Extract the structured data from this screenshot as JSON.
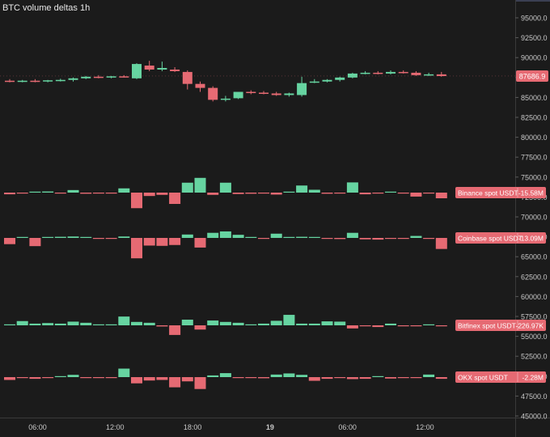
{
  "title": "BTC volume deltas  1h",
  "colors": {
    "up": "#66d4a1",
    "down": "#e66a73",
    "background": "#1b1b1b",
    "axis_text": "#c8c8c8"
  },
  "chart_data": {
    "type": "candlestick+bar",
    "title": "BTC volume deltas  1h",
    "y_axis": {
      "side": "right",
      "ticks": [
        "95000.0",
        "92500.0",
        "90000.0",
        "87500.0",
        "85000.0",
        "82500.0",
        "80000.0",
        "77500.0",
        "75000.0",
        "72500.0",
        "70000.0",
        "67500.0",
        "65000.0",
        "62500.0",
        "60000.0",
        "57500.0",
        "55000.0",
        "52500.0",
        "50000.0",
        "47500.0",
        "45000.0"
      ],
      "last_price_label": "87686.9"
    },
    "x_axis": {
      "tick_labels": [
        "06:00",
        "12:00",
        "18:00",
        "19",
        "06:00",
        "12:00"
      ]
    },
    "price_candles": [
      {
        "o": 87100,
        "h": 87300,
        "l": 86900,
        "c": 87000
      },
      {
        "o": 87000,
        "h": 87200,
        "l": 86900,
        "c": 87100
      },
      {
        "o": 87100,
        "h": 87300,
        "l": 86900,
        "c": 87000
      },
      {
        "o": 87000,
        "h": 87200,
        "l": 86900,
        "c": 87150
      },
      {
        "o": 87150,
        "h": 87350,
        "l": 87000,
        "c": 87200
      },
      {
        "o": 87200,
        "h": 87500,
        "l": 87000,
        "c": 87400
      },
      {
        "o": 87400,
        "h": 87700,
        "l": 87300,
        "c": 87600
      },
      {
        "o": 87600,
        "h": 87800,
        "l": 87400,
        "c": 87500
      },
      {
        "o": 87500,
        "h": 87700,
        "l": 87400,
        "c": 87650
      },
      {
        "o": 87650,
        "h": 87800,
        "l": 87500,
        "c": 87600
      },
      {
        "o": 87400,
        "h": 89300,
        "l": 87300,
        "c": 89200
      },
      {
        "o": 89000,
        "h": 89600,
        "l": 88300,
        "c": 88500
      },
      {
        "o": 88500,
        "h": 89500,
        "l": 88300,
        "c": 88700
      },
      {
        "o": 88500,
        "h": 88800,
        "l": 88200,
        "c": 88300
      },
      {
        "o": 88200,
        "h": 88400,
        "l": 86000,
        "c": 86700
      },
      {
        "o": 86700,
        "h": 87000,
        "l": 85700,
        "c": 86200
      },
      {
        "o": 86200,
        "h": 86400,
        "l": 84500,
        "c": 84700
      },
      {
        "o": 84700,
        "h": 85200,
        "l": 84500,
        "c": 84850
      },
      {
        "o": 84900,
        "h": 85500,
        "l": 84800,
        "c": 85700
      },
      {
        "o": 85700,
        "h": 85900,
        "l": 85400,
        "c": 85600
      },
      {
        "o": 85600,
        "h": 85800,
        "l": 85400,
        "c": 85500
      },
      {
        "o": 85500,
        "h": 85700,
        "l": 85200,
        "c": 85300
      },
      {
        "o": 85300,
        "h": 85600,
        "l": 85100,
        "c": 85500
      },
      {
        "o": 85300,
        "h": 87600,
        "l": 85100,
        "c": 86800
      },
      {
        "o": 86900,
        "h": 87300,
        "l": 86800,
        "c": 87000
      },
      {
        "o": 87000,
        "h": 87300,
        "l": 86900,
        "c": 87200
      },
      {
        "o": 87200,
        "h": 87600,
        "l": 87000,
        "c": 87500
      },
      {
        "o": 87500,
        "h": 88100,
        "l": 87400,
        "c": 88000
      },
      {
        "o": 88000,
        "h": 88300,
        "l": 87900,
        "c": 88100
      },
      {
        "o": 88100,
        "h": 88300,
        "l": 87900,
        "c": 88000
      },
      {
        "o": 88000,
        "h": 88400,
        "l": 87900,
        "c": 88200
      },
      {
        "o": 88200,
        "h": 88400,
        "l": 88000,
        "c": 88100
      },
      {
        "o": 88100,
        "h": 88300,
        "l": 87700,
        "c": 87800
      },
      {
        "o": 87800,
        "h": 88100,
        "l": 87700,
        "c": 87900
      },
      {
        "o": 87900,
        "h": 88200,
        "l": 87600,
        "c": 87687
      }
    ],
    "series": [
      {
        "name": "Binance spot USDT",
        "label": "-15.58M",
        "values": [
          -0.6,
          -0.3,
          0.2,
          0.4,
          -0.2,
          0.9,
          -0.4,
          -0.2,
          -0.3,
          1.5,
          -5.5,
          -1.2,
          -0.8,
          -4.0,
          3.5,
          5.2,
          -0.8,
          3.5,
          -0.5,
          -0.4,
          -0.3,
          -0.7,
          0.2,
          2.5,
          1.0,
          -0.4,
          -0.3,
          3.6,
          -0.6,
          -0.3,
          0.3,
          -0.2,
          -1.4,
          -0.2,
          -2.0
        ]
      },
      {
        "name": "Coinbase spot USDT",
        "label": "-13.09M",
        "values": [
          -2.2,
          0.3,
          -2.9,
          0.3,
          0.4,
          0.5,
          0.3,
          -0.3,
          -0.2,
          0.5,
          -7.2,
          -2.7,
          -2.8,
          -2.5,
          1.2,
          -3.4,
          1.8,
          2.3,
          1.1,
          0.3,
          -0.3,
          1.5,
          0.2,
          0.4,
          0.3,
          -0.3,
          -0.4,
          1.8,
          -0.5,
          -0.6,
          -0.3,
          -0.2,
          0.7,
          -0.3,
          -3.9
        ]
      },
      {
        "name": "Bitfinex spot USDT",
        "label": "-226.97K",
        "values": [
          0.2,
          1.5,
          0.6,
          0.8,
          0.6,
          1.3,
          0.9,
          0.2,
          0.3,
          3.1,
          1.2,
          0.9,
          -0.4,
          -3.4,
          2.0,
          -1.5,
          1.7,
          1.2,
          0.9,
          0.3,
          0.6,
          1.6,
          3.7,
          0.6,
          0.6,
          1.4,
          1.3,
          -1.1,
          -0.3,
          -0.6,
          0.6,
          -0.2,
          -0.2,
          0.1,
          -0.1
        ]
      },
      {
        "name": "OKX spot USDT",
        "label": "-2.28M",
        "values": [
          -1.0,
          -0.3,
          -0.6,
          -0.3,
          0.2,
          0.8,
          -0.2,
          -0.2,
          -0.3,
          3.0,
          -2.2,
          -1.2,
          -1.0,
          -3.6,
          -1.5,
          -4.2,
          0.6,
          1.4,
          -0.3,
          -0.2,
          -0.4,
          0.9,
          1.3,
          0.8,
          -1.3,
          -0.6,
          -0.3,
          -0.7,
          -0.6,
          0.3,
          -0.5,
          -0.2,
          -0.2,
          0.9,
          -0.6
        ]
      }
    ]
  }
}
